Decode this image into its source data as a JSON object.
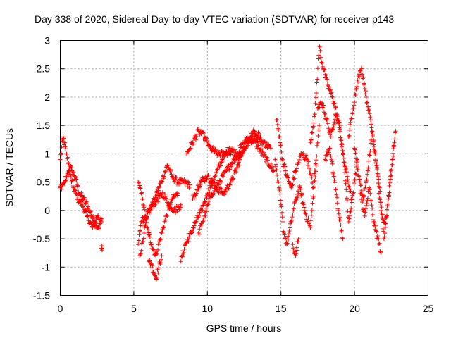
{
  "chart_data": {
    "type": "scatter",
    "title": "Day 338 of 2020, Sidereal Day-to-day VTEC variation (SDTVAR) for receiver p143",
    "xlabel": "GPS time / hours",
    "ylabel": "SDTVAR / TECUs",
    "xlim": [
      0,
      25
    ],
    "ylim": [
      -1.5,
      3
    ],
    "x_ticks": [
      0,
      5,
      10,
      15,
      20,
      25
    ],
    "x_tick_labels": [
      "0",
      "5",
      "10",
      "15",
      "20",
      "25"
    ],
    "y_ticks": [
      -1.5,
      -1,
      -0.5,
      0,
      0.5,
      1,
      1.5,
      2,
      2.5,
      3
    ],
    "y_tick_labels": [
      "-1.5",
      "-1",
      "-0.5",
      "0",
      "0.5",
      "1",
      "1.5",
      "2",
      "2.5",
      "3"
    ],
    "grid": true,
    "marker": "+",
    "color": "#ff0000",
    "series": [
      {
        "name": "SDTVAR",
        "tracks": [
          {
            "x": [
              0.0,
              0.2,
              0.4,
              0.6,
              0.8,
              1.0,
              1.3,
              1.6,
              2.0,
              2.3,
              2.6,
              2.8
            ],
            "y": [
              0.9,
              1.3,
              1.0,
              0.8,
              0.7,
              0.6,
              0.3,
              0.2,
              0.0,
              -0.2,
              -0.3,
              -0.2
            ]
          },
          {
            "x": [
              0.0,
              0.3,
              0.6,
              0.9,
              1.2,
              1.5,
              1.8,
              2.2,
              2.5,
              2.8
            ],
            "y": [
              0.4,
              0.5,
              0.7,
              0.4,
              0.2,
              0.1,
              -0.1,
              -0.3,
              -0.1,
              -0.15
            ]
          },
          {
            "x": [
              2.8,
              2.85
            ],
            "y": [
              -0.67,
              -0.7
            ]
          },
          {
            "x": [
              5.3,
              5.5,
              5.8,
              6.1,
              6.4,
              6.7,
              7.0,
              7.3,
              7.6,
              8.0,
              8.4,
              8.8
            ],
            "y": [
              -0.6,
              -0.2,
              -0.1,
              0.0,
              0.2,
              0.4,
              0.6,
              0.8,
              0.6,
              0.5,
              0.5,
              0.45
            ]
          },
          {
            "x": [
              5.3,
              5.6,
              5.9,
              6.2,
              6.5,
              6.8,
              7.2,
              7.6,
              8.0
            ],
            "y": [
              0.5,
              0.2,
              -0.3,
              -0.6,
              -0.8,
              -0.5,
              -0.1,
              0.2,
              0.3
            ]
          },
          {
            "x": [
              5.4,
              5.7,
              6.0,
              6.3,
              6.6,
              7.0,
              7.4,
              7.8,
              8.2
            ],
            "y": [
              -0.8,
              -0.4,
              0.0,
              0.1,
              0.2,
              0.3,
              0.1,
              0.0,
              0.1
            ]
          },
          {
            "x": [
              6.0,
              6.2,
              6.5,
              6.9
            ],
            "y": [
              -0.9,
              -0.95,
              -1.2,
              -0.8
            ]
          },
          {
            "x": [
              8.2,
              8.5,
              8.9,
              9.2,
              9.6,
              10.0,
              10.5,
              11.0,
              11.5,
              12.0,
              12.5,
              13.0,
              13.5,
              14.0,
              14.5
            ],
            "y": [
              -0.9,
              -0.6,
              -0.4,
              -0.2,
              0.0,
              0.3,
              0.6,
              0.9,
              1.1,
              1.0,
              1.2,
              1.3,
              1.1,
              0.9,
              0.7
            ]
          },
          {
            "x": [
              8.6,
              9.0,
              9.4,
              9.8,
              10.2,
              10.7,
              11.2,
              11.7
            ],
            "y": [
              1.0,
              1.2,
              1.4,
              1.3,
              1.1,
              1.0,
              1.0,
              1.05
            ]
          },
          {
            "x": [
              9.4,
              9.8,
              10.3,
              10.8,
              11.3,
              11.8,
              12.3,
              12.8,
              13.3,
              13.8,
              14.3
            ],
            "y": [
              -0.4,
              -0.1,
              0.3,
              0.5,
              0.7,
              0.9,
              1.0,
              1.2,
              1.3,
              1.2,
              1.1
            ]
          },
          {
            "x": [
              9.0,
              9.5,
              10.0,
              10.6,
              11.1,
              11.6,
              12.1,
              12.6,
              13.1,
              13.6
            ],
            "y": [
              0.2,
              0.5,
              0.6,
              0.4,
              0.3,
              0.5,
              0.8,
              1.2,
              1.4,
              1.3
            ]
          },
          {
            "x": [
              14.6,
              14.8,
              15.0,
              15.2,
              15.4,
              15.7,
              16.0,
              16.3,
              16.6,
              17.0,
              17.4
            ],
            "y": [
              0.9,
              0.5,
              0.1,
              -0.4,
              -0.6,
              -0.2,
              0.2,
              0.4,
              0.0,
              -0.3,
              0.8
            ]
          },
          {
            "x": [
              14.7,
              14.9,
              15.1,
              15.4,
              15.7,
              16.0,
              16.4,
              16.8,
              17.2,
              17.6
            ],
            "y": [
              1.6,
              1.3,
              0.9,
              0.6,
              0.4,
              0.7,
              1.0,
              0.9,
              0.4,
              1.5
            ]
          },
          {
            "x": [
              15.8,
              16.0,
              16.2
            ],
            "y": [
              -0.6,
              -0.8,
              -0.5
            ]
          },
          {
            "x": [
              17.0,
              17.3,
              17.6,
              17.8,
              18.0,
              18.2,
              18.5,
              18.8,
              19.0,
              19.2,
              19.5,
              19.8
            ],
            "y": [
              1.2,
              1.7,
              2.9,
              2.6,
              2.4,
              2.2,
              2.0,
              1.7,
              1.4,
              1.0,
              0.6,
              0.2
            ]
          },
          {
            "x": [
              17.5,
              17.8,
              18.1,
              18.4,
              18.7,
              19.0,
              19.3,
              19.6,
              19.9,
              20.2
            ],
            "y": [
              1.8,
              1.9,
              1.6,
              1.3,
              1.7,
              1.5,
              0.8,
              -0.2,
              0.3,
              0.9
            ]
          },
          {
            "x": [
              18.0,
              18.3,
              18.6,
              18.9,
              19.2
            ],
            "y": [
              0.9,
              1.1,
              0.6,
              0.0,
              -0.5
            ]
          },
          {
            "x": [
              19.6,
              19.9,
              20.2,
              20.5,
              20.8,
              21.1,
              21.4,
              21.7,
              22.0,
              22.3,
              22.6,
              22.8
            ],
            "y": [
              1.3,
              1.8,
              2.3,
              2.5,
              2.0,
              1.6,
              1.0,
              0.4,
              -0.5,
              0.2,
              0.9,
              1.4
            ]
          },
          {
            "x": [
              20.0,
              20.3,
              20.6,
              20.9,
              21.2,
              21.5,
              21.8,
              22.1,
              22.4,
              22.7
            ],
            "y": [
              1.1,
              0.6,
              0.2,
              0.7,
              1.4,
              0.8,
              0.0,
              -0.3,
              0.5,
              1.2
            ]
          },
          {
            "x": [
              20.4,
              20.7,
              21.0,
              21.3,
              21.6,
              21.8
            ],
            "y": [
              0.3,
              -0.1,
              0.4,
              -0.2,
              -0.5,
              -0.75
            ]
          }
        ]
      }
    ]
  }
}
